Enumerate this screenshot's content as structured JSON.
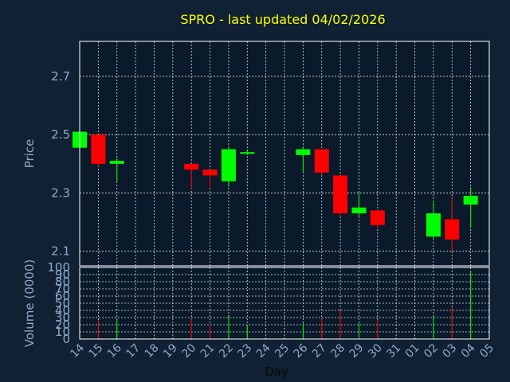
{
  "colors": {
    "background": "#0f2133",
    "up": "#00ff00",
    "down": "#ff0000",
    "title": "#ffff00",
    "text": "#8fa9c9"
  },
  "chart_data": [
    {
      "type": "candlestick",
      "title": "SPRO - last updated 04/02/2026",
      "ylabel": "Price",
      "ylim": [
        2.05,
        2.82
      ],
      "yticks": [
        "2.7",
        "2.5",
        "2.3",
        "2.1"
      ],
      "grid": true,
      "categories": [
        "14",
        "15",
        "16",
        "17",
        "18",
        "19",
        "20",
        "21",
        "22",
        "23",
        "24",
        "25",
        "26",
        "27",
        "28",
        "29",
        "30",
        "31",
        "01",
        "02",
        "03",
        "04",
        "05"
      ],
      "candles": [
        {
          "day": "14",
          "open": 2.455,
          "high": 2.51,
          "low": 2.45,
          "close": 2.51
        },
        {
          "day": "15",
          "open": 2.5,
          "high": 2.5,
          "low": 2.39,
          "close": 2.4
        },
        {
          "day": "16",
          "open": 2.4,
          "high": 2.42,
          "low": 2.34,
          "close": 2.41
        },
        {
          "day": "20",
          "open": 2.4,
          "high": 2.4,
          "low": 2.31,
          "close": 2.38
        },
        {
          "day": "21",
          "open": 2.38,
          "high": 2.38,
          "low": 2.32,
          "close": 2.36
        },
        {
          "day": "22",
          "open": 2.34,
          "high": 2.46,
          "low": 2.32,
          "close": 2.45
        },
        {
          "day": "23",
          "open": 2.44,
          "high": 2.45,
          "low": 2.43,
          "close": 2.44
        },
        {
          "day": "26",
          "open": 2.43,
          "high": 2.46,
          "low": 2.37,
          "close": 2.45
        },
        {
          "day": "27",
          "open": 2.45,
          "high": 2.45,
          "low": 2.36,
          "close": 2.37
        },
        {
          "day": "28",
          "open": 2.36,
          "high": 2.36,
          "low": 2.22,
          "close": 2.23
        },
        {
          "day": "29",
          "open": 2.23,
          "high": 2.3,
          "low": 2.22,
          "close": 2.25
        },
        {
          "day": "30",
          "open": 2.24,
          "high": 2.24,
          "low": 2.18,
          "close": 2.19
        },
        {
          "day": "02",
          "open": 2.15,
          "high": 2.27,
          "low": 2.14,
          "close": 2.23
        },
        {
          "day": "03",
          "open": 2.21,
          "high": 2.29,
          "low": 2.1,
          "close": 2.14
        },
        {
          "day": "04",
          "open": 2.26,
          "high": 2.32,
          "low": 2.18,
          "close": 2.29
        }
      ]
    },
    {
      "type": "bar",
      "ylabel": "Volume (0000)",
      "xlabel": "Day",
      "ylim": [
        0,
        100
      ],
      "yticks": [
        "100",
        "90",
        "80",
        "70",
        "60",
        "50",
        "40",
        "30",
        "20",
        "10",
        "0"
      ],
      "grid": true,
      "categories": [
        "14",
        "15",
        "16",
        "17",
        "18",
        "19",
        "20",
        "21",
        "22",
        "23",
        "24",
        "25",
        "26",
        "27",
        "28",
        "29",
        "30",
        "31",
        "01",
        "02",
        "03",
        "04",
        "05"
      ],
      "bars": [
        {
          "day": "15",
          "value": 26,
          "color": "down"
        },
        {
          "day": "16",
          "value": 28,
          "color": "up"
        },
        {
          "day": "20",
          "value": 28,
          "color": "down"
        },
        {
          "day": "21",
          "value": 20,
          "color": "down"
        },
        {
          "day": "22",
          "value": 31,
          "color": "up"
        },
        {
          "day": "23",
          "value": 20,
          "color": "up"
        },
        {
          "day": "26",
          "value": 22,
          "color": "up"
        },
        {
          "day": "27",
          "value": 28,
          "color": "down"
        },
        {
          "day": "28",
          "value": 40,
          "color": "down"
        },
        {
          "day": "29",
          "value": 22,
          "color": "up"
        },
        {
          "day": "30",
          "value": 27,
          "color": "down"
        },
        {
          "day": "02",
          "value": 31,
          "color": "up"
        },
        {
          "day": "03",
          "value": 45,
          "color": "down"
        },
        {
          "day": "04",
          "value": 95,
          "color": "up"
        }
      ]
    }
  ]
}
